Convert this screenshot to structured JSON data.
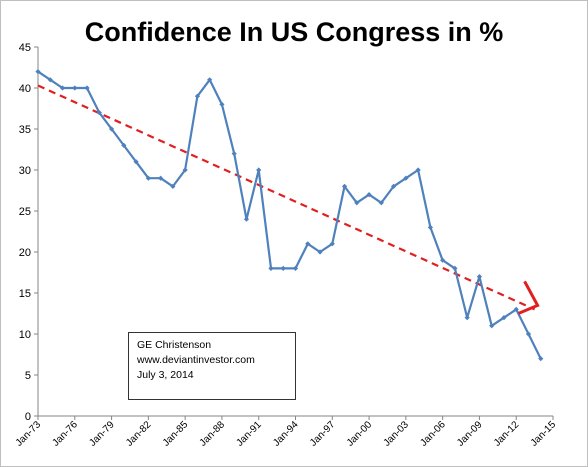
{
  "chart_data": {
    "type": "line",
    "title": "Confidence In US Congress in %",
    "xlabel": "",
    "ylabel": "",
    "ylim": [
      0,
      45
    ],
    "yticks": [
      "0",
      "5",
      "10",
      "15",
      "20",
      "25",
      "30",
      "35",
      "40",
      "45"
    ],
    "xlim": [
      1973,
      2015
    ],
    "xticks": [
      "Jan-73",
      "Jan-76",
      "Jan-79",
      "Jan-82",
      "Jan-85",
      "Jan-88",
      "Jan-91",
      "Jan-94",
      "Jan-97",
      "Jan-00",
      "Jan-03",
      "Jan-06",
      "Jan-09",
      "Jan-12",
      "Jan-15"
    ],
    "grid": false,
    "legend": "none",
    "series": [
      {
        "color": "#4f81bd",
        "x": [
          1973,
          1974,
          1975,
          1976,
          1977,
          1978,
          1979,
          1980,
          1981,
          1982,
          1983,
          1984,
          1985,
          1986,
          1987,
          1988,
          1989,
          1990,
          1991,
          1992,
          1993,
          1994,
          1995,
          1996,
          1997,
          1998,
          1999,
          2000,
          2001,
          2002,
          2003,
          2004,
          2005,
          2006,
          2007,
          2008,
          2009,
          2010,
          2011,
          2012,
          2013,
          2014
        ],
        "y": [
          42,
          41,
          40,
          40,
          40,
          37,
          35,
          33,
          31,
          29,
          29,
          28,
          30,
          39,
          41,
          38,
          32,
          24,
          30,
          18,
          18,
          18,
          21,
          20,
          21,
          28,
          26,
          27,
          26,
          28,
          29,
          30,
          23,
          19,
          18,
          12,
          17,
          11,
          12,
          13,
          10,
          7
        ]
      }
    ],
    "trendline": {
      "style": "dashed",
      "color": "#e02020",
      "x": [
        1973,
        2013.5
      ],
      "y": [
        40.3,
        13.0
      ]
    },
    "arrow_color": "#e02020",
    "annotation_lines": [
      "GE Christenson",
      "www.deviantinvestor.com",
      "July 3, 2014"
    ]
  }
}
